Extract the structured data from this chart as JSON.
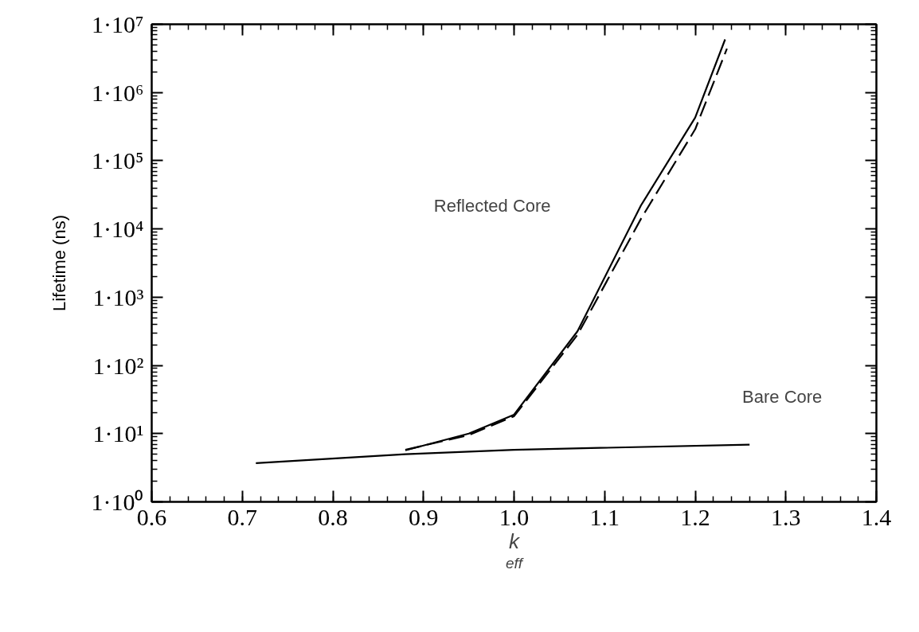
{
  "chart_data": {
    "type": "line",
    "xlabel": "k$_{eff}$",
    "ylabel": "Lifetime (ns)",
    "log": "y",
    "xlim": [
      0.6,
      1.4
    ],
    "xticks": [
      {
        "value": 0.6,
        "label": "0.6"
      },
      {
        "value": 0.7,
        "label": "0.7"
      },
      {
        "value": 0.8,
        "label": "0.8"
      },
      {
        "value": 0.9,
        "label": "0.9"
      },
      {
        "value": 1.0,
        "label": "1.0"
      },
      {
        "value": 1.1,
        "label": "1.1"
      },
      {
        "value": 1.2,
        "label": "1.2"
      },
      {
        "value": 1.3,
        "label": "1.3"
      },
      {
        "value": 1.4,
        "label": "1.4"
      }
    ],
    "ylim": [
      1,
      10000000
    ],
    "yticks": [
      {
        "value": 1,
        "label": "1·10⁰"
      },
      {
        "value": 10,
        "label": "1·10¹"
      },
      {
        "value": 100,
        "label": "1·10²"
      },
      {
        "value": 1000,
        "label": "1·10³"
      },
      {
        "value": 10000,
        "label": "1·10⁴"
      },
      {
        "value": 100000,
        "label": "1·10⁵"
      },
      {
        "value": 1000000,
        "label": "1·10⁶"
      },
      {
        "value": 10000000,
        "label": "1·10⁷"
      }
    ],
    "grid": false,
    "series": [
      {
        "color": "#000000",
        "line_style": "solid",
        "x": [
          0.88,
          0.95,
          1.0,
          1.07,
          1.14,
          1.2,
          1.233
        ],
        "values": [
          5.7,
          10,
          19,
          316,
          22000,
          430000,
          6000000
        ]
      },
      {
        "color": "#000000",
        "line_style": "dashed",
        "x": [
          0.88,
          0.95,
          1.0,
          1.07,
          1.14,
          1.2,
          1.235
        ],
        "values": [
          5.8,
          9.5,
          18,
          280,
          14000,
          290000,
          4400000
        ]
      },
      {
        "color": "#000000",
        "line_style": "solid",
        "x": [
          0.715,
          0.88,
          1.0,
          1.26
        ],
        "values": [
          3.7,
          5.0,
          5.8,
          6.9
        ]
      }
    ],
    "annotations": [
      "Reflected Core",
      "Bare Core"
    ]
  }
}
